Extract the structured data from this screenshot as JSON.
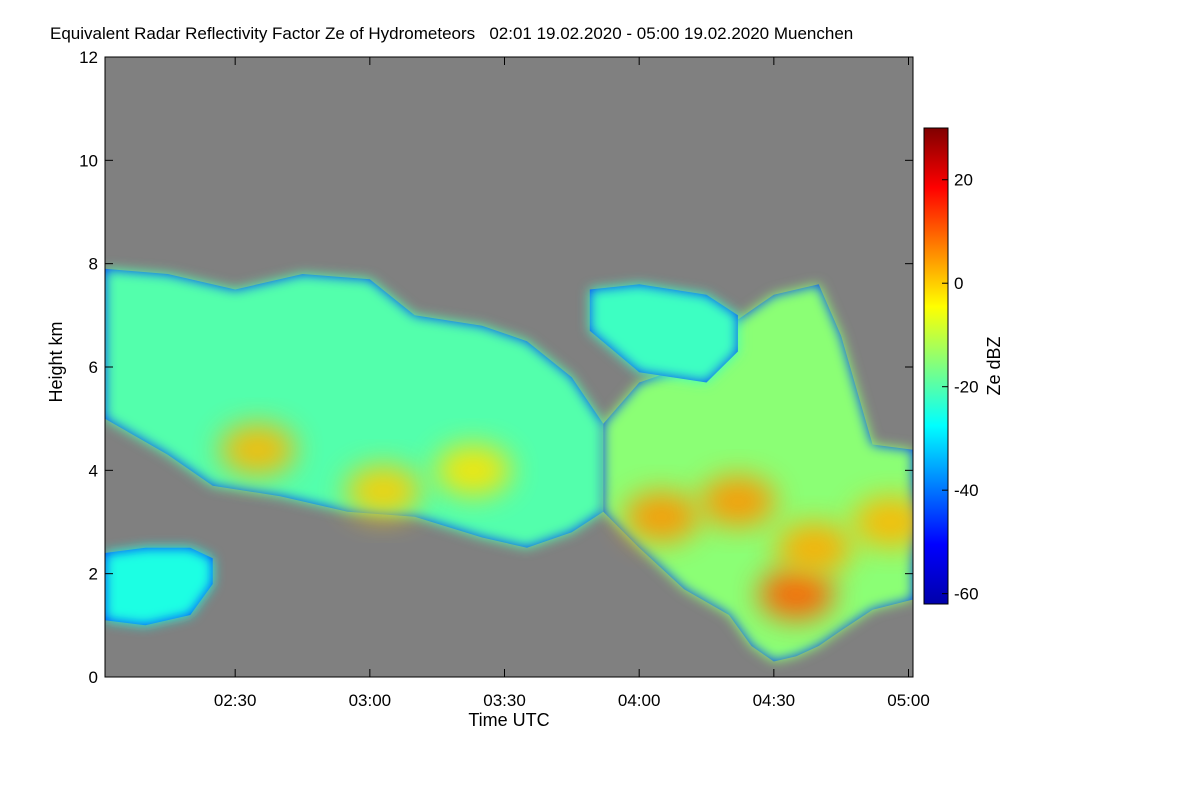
{
  "chart_data": {
    "type": "heatmap",
    "title": "Equivalent Radar Reflectivity Factor Ze of Hydrometeors   02:01 19.02.2020 - 05:00 19.02.2020 Muenchen",
    "xlabel": "Time UTC",
    "ylabel": "Height km",
    "colorbar_label": "Ze dBZ",
    "xlim": [
      121,
      301
    ],
    "x_ticks": [
      {
        "value": 150,
        "label": "02:30"
      },
      {
        "value": 180,
        "label": "03:00"
      },
      {
        "value": 210,
        "label": "03:30"
      },
      {
        "value": 240,
        "label": "04:00"
      },
      {
        "value": 270,
        "label": "04:30"
      },
      {
        "value": 300,
        "label": "05:00"
      }
    ],
    "ylim": [
      0,
      12
    ],
    "y_ticks": [
      0,
      2,
      4,
      6,
      8,
      10,
      12
    ],
    "clim": [
      -62,
      30
    ],
    "colorbar_ticks": [
      20,
      0,
      -20,
      -40,
      -60
    ],
    "background_color": "#808080",
    "colormap": [
      "#0000aa",
      "#0000ff",
      "#0080ff",
      "#00ffff",
      "#80ff80",
      "#ffff00",
      "#ff8000",
      "#ff0000",
      "#800000"
    ],
    "regions": [
      {
        "name": "upper-cloud-left",
        "top": [
          [
            121,
            7.9
          ],
          [
            135,
            7.8
          ],
          [
            150,
            7.5
          ],
          [
            165,
            7.8
          ],
          [
            180,
            7.7
          ],
          [
            190,
            7.0
          ],
          [
            205,
            6.8
          ],
          [
            215,
            6.5
          ],
          [
            225,
            5.8
          ],
          [
            232,
            4.9
          ]
        ],
        "bottom": [
          [
            121,
            5.0
          ],
          [
            135,
            4.3
          ],
          [
            145,
            3.7
          ],
          [
            160,
            3.5
          ],
          [
            175,
            3.2
          ],
          [
            190,
            3.1
          ],
          [
            205,
            2.7
          ],
          [
            215,
            2.5
          ],
          [
            225,
            2.8
          ],
          [
            232,
            3.2
          ]
        ],
        "core": -20
      },
      {
        "name": "upper-cloud-right",
        "top": [
          [
            232,
            4.9
          ],
          [
            240,
            5.7
          ],
          [
            250,
            6.0
          ],
          [
            260,
            6.8
          ],
          [
            270,
            7.4
          ],
          [
            280,
            7.6
          ],
          [
            285,
            6.6
          ],
          [
            292,
            4.5
          ],
          [
            301,
            4.4
          ]
        ],
        "bottom": [
          [
            232,
            3.2
          ],
          [
            240,
            2.5
          ],
          [
            250,
            1.7
          ],
          [
            260,
            1.2
          ],
          [
            265,
            0.6
          ],
          [
            270,
            0.3
          ],
          [
            275,
            0.4
          ],
          [
            280,
            0.6
          ],
          [
            285,
            0.9
          ],
          [
            292,
            1.3
          ],
          [
            301,
            1.5
          ]
        ],
        "core": -15
      },
      {
        "name": "isolated-cell-upper",
        "top": [
          [
            229,
            7.5
          ],
          [
            240,
            7.6
          ],
          [
            255,
            7.4
          ],
          [
            262,
            7.0
          ]
        ],
        "bottom": [
          [
            229,
            6.7
          ],
          [
            240,
            5.9
          ],
          [
            255,
            5.7
          ],
          [
            262,
            6.3
          ]
        ],
        "core": -22
      },
      {
        "name": "low-cloud-left",
        "top": [
          [
            121,
            2.4
          ],
          [
            130,
            2.5
          ],
          [
            140,
            2.5
          ],
          [
            145,
            2.3
          ]
        ],
        "bottom": [
          [
            121,
            1.1
          ],
          [
            130,
            1.0
          ],
          [
            140,
            1.2
          ],
          [
            145,
            1.8
          ]
        ],
        "core": -25
      }
    ],
    "cores": [
      {
        "x": 155,
        "y": 4.4,
        "value": 2
      },
      {
        "x": 183,
        "y": 3.6,
        "value": 0
      },
      {
        "x": 203,
        "y": 4.0,
        "value": -2
      },
      {
        "x": 245,
        "y": 3.1,
        "value": 5
      },
      {
        "x": 262,
        "y": 3.4,
        "value": 5
      },
      {
        "x": 275,
        "y": 1.6,
        "value": 10
      },
      {
        "x": 279,
        "y": 2.5,
        "value": 3
      },
      {
        "x": 296,
        "y": 3.0,
        "value": 2
      }
    ]
  }
}
